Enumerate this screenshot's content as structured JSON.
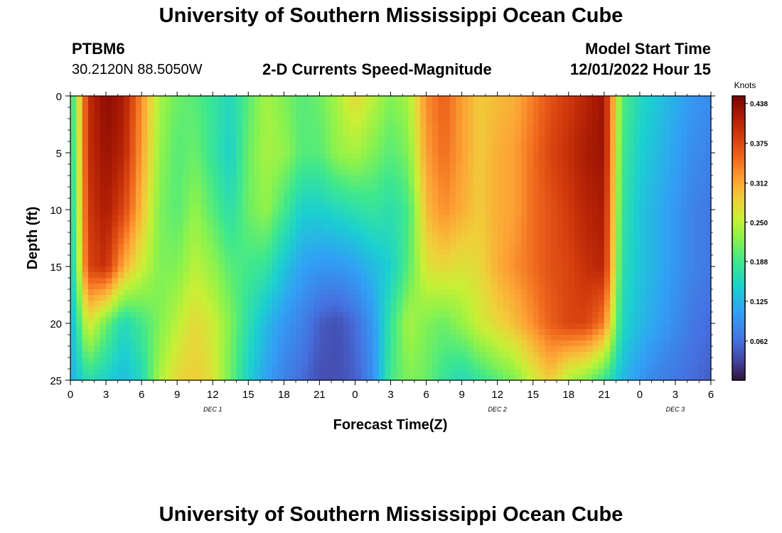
{
  "header": {
    "title": "University of Southern Mississippi Ocean Cube",
    "station": "PTBM6",
    "coordinates": "30.2120N  88.5050W",
    "chart_title": "2-D Currents Speed-Magnitude",
    "model_label": "Model Start Time",
    "model_time": "12/01/2022 Hour 15"
  },
  "footer": {
    "title": "University of Southern Mississippi Ocean Cube"
  },
  "chart_data": {
    "type": "heatmap",
    "title": "2-D Currents Speed-Magnitude",
    "xlabel": "Forecast Time(Z)",
    "ylabel": "Depth (ft)",
    "xlim": [
      0,
      54
    ],
    "ylim": [
      0,
      25
    ],
    "x_ticks": [
      0,
      3,
      6,
      9,
      12,
      15,
      18,
      21,
      24,
      27,
      30,
      33,
      36,
      39,
      42,
      45,
      48,
      51,
      54
    ],
    "x_tick_labels": [
      "0",
      "3",
      "6",
      "9",
      "12",
      "15",
      "18",
      "21",
      "0",
      "3",
      "6",
      "9",
      "12",
      "15",
      "18",
      "21",
      "0",
      "3",
      "6"
    ],
    "y_ticks": [
      0,
      5,
      10,
      15,
      20,
      25
    ],
    "y_tick_labels": [
      "0",
      "5",
      "10",
      "15",
      "20",
      "25"
    ],
    "day_labels": [
      {
        "label": "DEC 1",
        "x": 12
      },
      {
        "label": "DEC 2",
        "x": 36
      },
      {
        "label": "DEC 3",
        "x": 51
      }
    ],
    "colorbar": {
      "label": "Knots",
      "min": 0.0,
      "max": 0.45,
      "ticks": [
        0.062,
        0.125,
        0.188,
        0.25,
        0.312,
        0.375,
        0.438
      ],
      "tick_labels": [
        "0.062",
        "0.125",
        "0.188",
        "0.250",
        "0.312",
        "0.375",
        "0.438"
      ]
    },
    "depth_levels": [
      0,
      5,
      10,
      15,
      20,
      25
    ],
    "time_hours": [
      0,
      1.5,
      3,
      4.5,
      6,
      7.5,
      9,
      10.5,
      12,
      13.5,
      15,
      16.5,
      18,
      19.5,
      21,
      22.5,
      24,
      25.5,
      27,
      28.5,
      30,
      31.5,
      33,
      34.5,
      36,
      37.5,
      39,
      40.5,
      42,
      43.5,
      45,
      46.5,
      48,
      49.5,
      51,
      52.5,
      54
    ],
    "speed_knots": [
      [
        0.16,
        0.4,
        0.44,
        0.42,
        0.33,
        0.24,
        0.21,
        0.2,
        0.18,
        0.16,
        0.2,
        0.24,
        0.22,
        0.2,
        0.21,
        0.24,
        0.28,
        0.25,
        0.22,
        0.24,
        0.33,
        0.36,
        0.32,
        0.29,
        0.3,
        0.31,
        0.34,
        0.37,
        0.39,
        0.41,
        0.43,
        0.2,
        0.16,
        0.14,
        0.12,
        0.1,
        0.09
      ],
      [
        0.15,
        0.4,
        0.43,
        0.41,
        0.32,
        0.23,
        0.2,
        0.21,
        0.18,
        0.15,
        0.21,
        0.24,
        0.23,
        0.2,
        0.2,
        0.23,
        0.24,
        0.22,
        0.2,
        0.22,
        0.32,
        0.35,
        0.32,
        0.29,
        0.31,
        0.32,
        0.35,
        0.38,
        0.4,
        0.42,
        0.43,
        0.19,
        0.15,
        0.13,
        0.11,
        0.09,
        0.08
      ],
      [
        0.14,
        0.39,
        0.42,
        0.38,
        0.3,
        0.22,
        0.2,
        0.23,
        0.2,
        0.17,
        0.21,
        0.23,
        0.19,
        0.15,
        0.15,
        0.16,
        0.17,
        0.18,
        0.17,
        0.19,
        0.3,
        0.33,
        0.31,
        0.29,
        0.31,
        0.32,
        0.35,
        0.37,
        0.39,
        0.41,
        0.42,
        0.18,
        0.14,
        0.12,
        0.1,
        0.08,
        0.07
      ],
      [
        0.13,
        0.38,
        0.4,
        0.31,
        0.26,
        0.22,
        0.22,
        0.25,
        0.23,
        0.2,
        0.19,
        0.18,
        0.14,
        0.11,
        0.1,
        0.1,
        0.11,
        0.13,
        0.15,
        0.2,
        0.27,
        0.28,
        0.27,
        0.28,
        0.31,
        0.33,
        0.35,
        0.37,
        0.38,
        0.4,
        0.41,
        0.17,
        0.14,
        0.12,
        0.1,
        0.08,
        0.07
      ],
      [
        0.12,
        0.27,
        0.21,
        0.16,
        0.19,
        0.22,
        0.25,
        0.28,
        0.26,
        0.22,
        0.17,
        0.13,
        0.1,
        0.08,
        0.05,
        0.04,
        0.06,
        0.1,
        0.18,
        0.24,
        0.22,
        0.21,
        0.23,
        0.26,
        0.28,
        0.3,
        0.33,
        0.36,
        0.38,
        0.38,
        0.34,
        0.16,
        0.13,
        0.11,
        0.09,
        0.07,
        0.06
      ],
      [
        0.12,
        0.17,
        0.15,
        0.13,
        0.16,
        0.24,
        0.28,
        0.29,
        0.27,
        0.21,
        0.15,
        0.11,
        0.08,
        0.06,
        0.04,
        0.04,
        0.05,
        0.09,
        0.19,
        0.22,
        0.21,
        0.18,
        0.16,
        0.18,
        0.2,
        0.22,
        0.26,
        0.29,
        0.24,
        0.22,
        0.18,
        0.13,
        0.1,
        0.08,
        0.07,
        0.06,
        0.05
      ]
    ]
  }
}
